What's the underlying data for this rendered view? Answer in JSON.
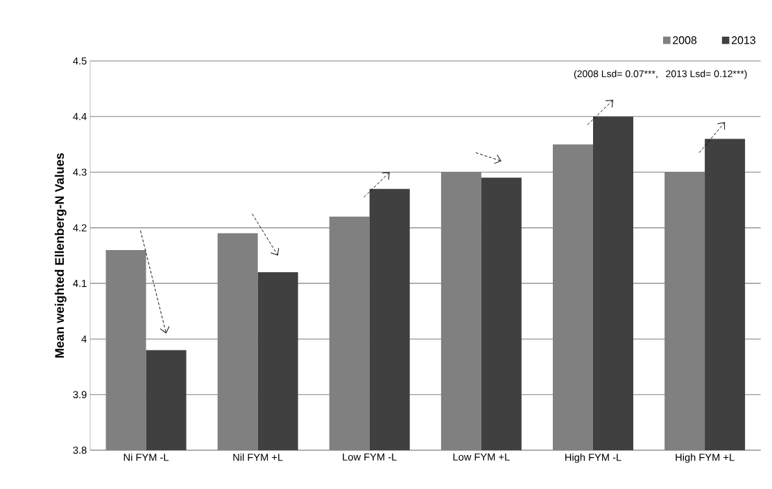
{
  "chart_data": {
    "type": "bar",
    "ylabel": "Mean weighted Ellenberg-N Values",
    "categories": [
      "Ni FYM -L",
      "Nil FYM +L",
      "Low FYM -L",
      "Low FYM +L",
      "High FYM -L",
      "High FYM +L"
    ],
    "series": [
      {
        "name": "2008",
        "color": "#808080",
        "values": [
          4.16,
          4.19,
          4.22,
          4.3,
          4.35,
          4.3
        ]
      },
      {
        "name": "2013",
        "color": "#404040",
        "values": [
          3.98,
          4.12,
          4.27,
          4.29,
          4.4,
          4.36
        ]
      }
    ],
    "ylim": [
      3.8,
      4.5
    ],
    "yticks": [
      3.8,
      3.9,
      {
        "value": 4,
        "label": "4"
      },
      4.1,
      4.2,
      4.3,
      4.4,
      4.5
    ],
    "grid": "y",
    "legend": "top right",
    "annotations": [
      "(2008 Lsd= 0.07***,",
      "2013 Lsd= 0.12***)"
    ]
  }
}
